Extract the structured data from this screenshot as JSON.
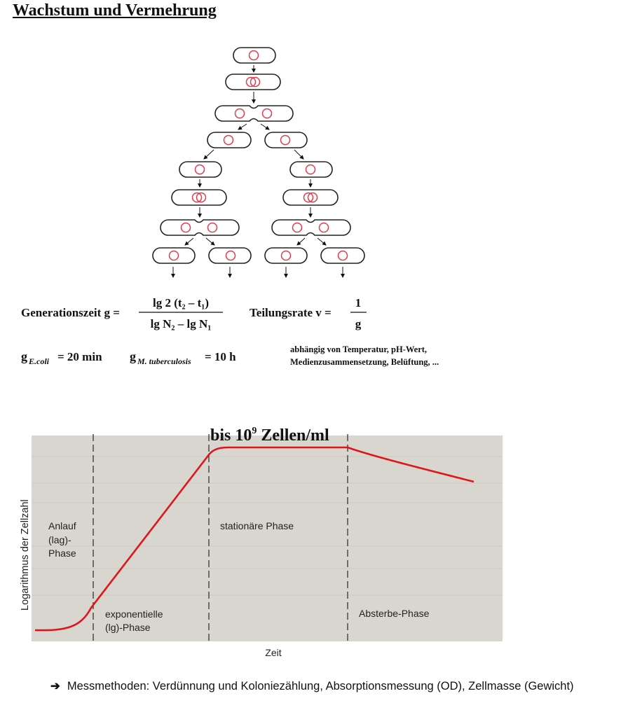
{
  "title": "Wachstum und Vermehrung",
  "formulas": {
    "generation_label": "Generationszeit g =",
    "generation_numerator": "lg 2 (t₂ – t₁)",
    "generation_denominator": "lg N₂ – lg N₁",
    "rate_label": "Teilungsrate v =",
    "rate_numerator": "1",
    "rate_denominator": "g",
    "ecoli_g": "g",
    "ecoli_sub": "E.coli",
    "ecoli_value": "= 20 min",
    "mtb_g": "g",
    "mtb_sub": "M. tuberculosis",
    "mtb_value": "= 10 h",
    "dependency_line1": "abhängig von Temperatur, pH-Wert,",
    "dependency_line2": "Medienzusammensetzung, Belüftung, ..."
  },
  "growth_chart": {
    "heading": "bis 10",
    "heading_exp": "9",
    "heading_unit": " Zellen/ml",
    "ylabel": "Logarithmus der Zellzahl",
    "xlabel": "Zeit",
    "phases": {
      "lag_line1": "Anlauf",
      "lag_line2": "(lag)-",
      "lag_line3": "Phase",
      "exp_line1": "exponentielle",
      "exp_line2": "(lg)-Phase",
      "stationary": "stationäre Phase",
      "death": "Absterbe-Phase"
    },
    "colors": {
      "curve": "#e0151c",
      "background": "#d9d6cf",
      "nucleus": "#e23a4a"
    }
  },
  "note": {
    "arrow": "➔",
    "text": "Messmethoden: Verdünnung und Koloniezählung, Absorptionsmessung (OD), Zellmasse (Gewicht)"
  }
}
